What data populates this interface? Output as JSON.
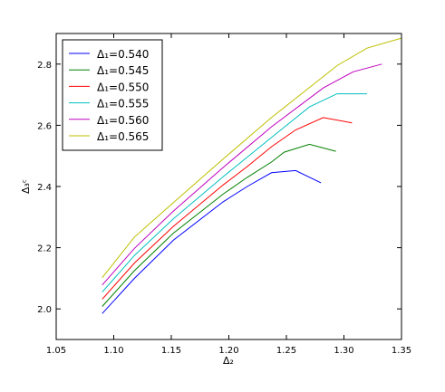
{
  "chart_data": {
    "type": "line",
    "title": "",
    "xlabel": "Δ₂",
    "ylabel": "Δ₃ᶜ",
    "xlim": [
      1.05,
      1.35
    ],
    "ylim": [
      1.9,
      2.9
    ],
    "xticks": [
      1.05,
      1.1,
      1.15,
      1.2,
      1.25,
      1.3,
      1.35
    ],
    "xtick_labels": [
      "1.05",
      "1.10",
      "1.15",
      "1.20",
      "1.25",
      "1.30",
      "1.35"
    ],
    "yticks": [
      2.0,
      2.2,
      2.4,
      2.6,
      2.8
    ],
    "ytick_labels": [
      "2.0",
      "2.2",
      "2.4",
      "2.6",
      "2.8"
    ],
    "grid": false,
    "legend_position": "top-left",
    "series": [
      {
        "name": "Δ₁=0.540",
        "color": "#0000ff",
        "x": [
          1.09,
          1.118,
          1.152,
          1.195,
          1.216,
          1.237,
          1.258,
          1.28
        ],
        "y": [
          1.985,
          2.1,
          2.225,
          2.35,
          2.4,
          2.445,
          2.452,
          2.412
        ]
      },
      {
        "name": "Δ₁=0.545",
        "color": "#008000",
        "x": [
          1.09,
          1.118,
          1.152,
          1.195,
          1.216,
          1.237,
          1.248,
          1.27,
          1.293
        ],
        "y": [
          2.008,
          2.125,
          2.248,
          2.375,
          2.43,
          2.48,
          2.512,
          2.538,
          2.515
        ]
      },
      {
        "name": "Δ₁=0.550",
        "color": "#ff0000",
        "x": [
          1.09,
          1.118,
          1.152,
          1.195,
          1.216,
          1.237,
          1.258,
          1.282,
          1.307
        ],
        "y": [
          2.032,
          2.15,
          2.27,
          2.405,
          2.465,
          2.53,
          2.585,
          2.625,
          2.608
        ]
      },
      {
        "name": "Δ₁=0.555",
        "color": "#00bfbf",
        "x": [
          1.09,
          1.118,
          1.152,
          1.195,
          1.237,
          1.27,
          1.294,
          1.32
        ],
        "y": [
          2.055,
          2.175,
          2.295,
          2.432,
          2.56,
          2.66,
          2.703,
          2.703
        ]
      },
      {
        "name": "Δ₁=0.560",
        "color": "#bf00bf",
        "x": [
          1.09,
          1.118,
          1.152,
          1.195,
          1.237,
          1.282,
          1.308,
          1.333
        ],
        "y": [
          2.078,
          2.198,
          2.32,
          2.462,
          2.595,
          2.722,
          2.775,
          2.8
        ]
      },
      {
        "name": "Δ₁=0.565",
        "color": "#bfbf00",
        "x": [
          1.09,
          1.118,
          1.152,
          1.195,
          1.237,
          1.294,
          1.32,
          1.35
        ],
        "y": [
          2.102,
          2.235,
          2.348,
          2.49,
          2.625,
          2.795,
          2.852,
          2.885
        ]
      }
    ]
  }
}
